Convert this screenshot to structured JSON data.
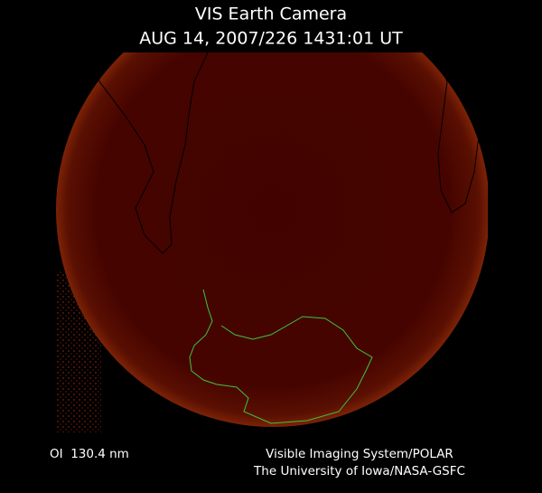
{
  "header": {
    "title": "VIS Earth Camera",
    "subtitle": "AUG 14, 2007/226 1431:01 UT"
  },
  "footer": {
    "left": "OI  130.4 nm",
    "right": [
      "Visible Imaging System/POLAR",
      "The University of Iowa/NASA-GSFC"
    ]
  }
}
